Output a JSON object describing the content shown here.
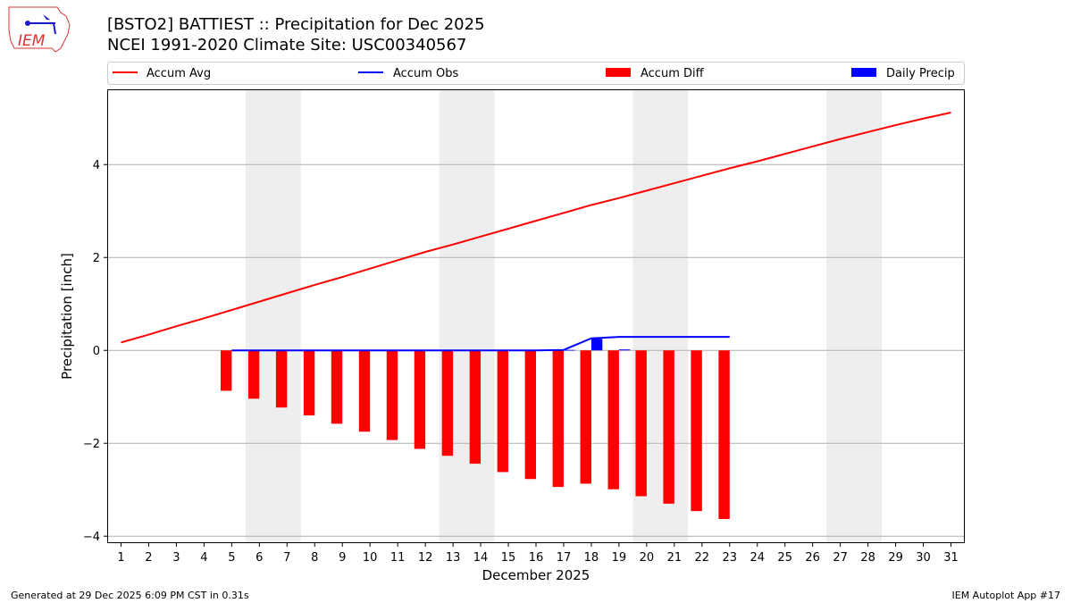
{
  "logo_text": "IEM",
  "footer": {
    "left": "Generated at 29 Dec 2025 6:09 PM CST in 0.31s",
    "right": "IEM Autoplot App #17"
  },
  "chart_data": {
    "type": "bar",
    "title": "[BSTO2] BATTIEST :: Precipitation for Dec 2025",
    "subtitle": "NCEI 1991-2020 Climate Site: USC00340567",
    "xlabel": "December 2025",
    "ylabel": "Precipitation [inch]",
    "xlim": [
      0.5,
      31.5
    ],
    "ylim": [
      -4.15,
      5.62
    ],
    "yticks": [
      -4,
      -2,
      0,
      2,
      4
    ],
    "ytick_labels": [
      "−4",
      "−2",
      "0",
      "2",
      "4"
    ],
    "xticks": [
      1,
      2,
      3,
      4,
      5,
      6,
      7,
      8,
      9,
      10,
      11,
      12,
      13,
      14,
      15,
      16,
      17,
      18,
      19,
      20,
      21,
      22,
      23,
      24,
      25,
      26,
      27,
      28,
      29,
      30,
      31
    ],
    "grid": "horizontal",
    "legend_placement": "top",
    "weekend_shading": [
      [
        5.5,
        7.5
      ],
      [
        12.5,
        14.5
      ],
      [
        19.5,
        21.5
      ],
      [
        26.5,
        28.5
      ]
    ],
    "series": [
      {
        "name": "Accum Avg",
        "type": "line",
        "color": "#ff0000",
        "x": [
          1,
          2,
          3,
          4,
          5,
          6,
          7,
          8,
          9,
          10,
          11,
          12,
          13,
          14,
          15,
          16,
          17,
          18,
          19,
          20,
          21,
          22,
          23,
          24,
          25,
          26,
          27,
          28,
          29,
          30,
          31
        ],
        "values": [
          0.17,
          0.34,
          0.52,
          0.69,
          0.87,
          1.05,
          1.23,
          1.41,
          1.58,
          1.76,
          1.94,
          2.12,
          2.28,
          2.45,
          2.62,
          2.79,
          2.96,
          3.13,
          3.28,
          3.44,
          3.6,
          3.76,
          3.92,
          4.07,
          4.23,
          4.39,
          4.55,
          4.7,
          4.85,
          4.99,
          5.12
        ]
      },
      {
        "name": "Accum Obs",
        "type": "line",
        "color": "#0000ff",
        "x": [
          5,
          6,
          7,
          8,
          9,
          10,
          11,
          12,
          13,
          14,
          15,
          16,
          17,
          18,
          19,
          20,
          21,
          22,
          23
        ],
        "values": [
          0,
          0,
          0,
          0,
          0,
          0,
          0,
          0,
          0,
          0,
          0,
          0,
          0.01,
          0.26,
          0.29,
          0.29,
          0.29,
          0.29,
          0.29
        ]
      },
      {
        "name": "Accum Diff",
        "type": "bar",
        "color": "#ff0000",
        "x": [
          5,
          6,
          7,
          8,
          9,
          10,
          11,
          12,
          13,
          14,
          15,
          16,
          17,
          18,
          19,
          20,
          21,
          22,
          23
        ],
        "values": [
          -0.87,
          -1.04,
          -1.23,
          -1.4,
          -1.58,
          -1.75,
          -1.93,
          -2.12,
          -2.27,
          -2.44,
          -2.62,
          -2.77,
          -2.94,
          -2.87,
          -2.99,
          -3.14,
          -3.3,
          -3.46,
          -3.63
        ]
      },
      {
        "name": "Daily Precip",
        "type": "bar",
        "color": "#0000ff",
        "x": [
          17,
          18,
          19
        ],
        "values": [
          0.01,
          0.25,
          0.02
        ]
      }
    ]
  }
}
